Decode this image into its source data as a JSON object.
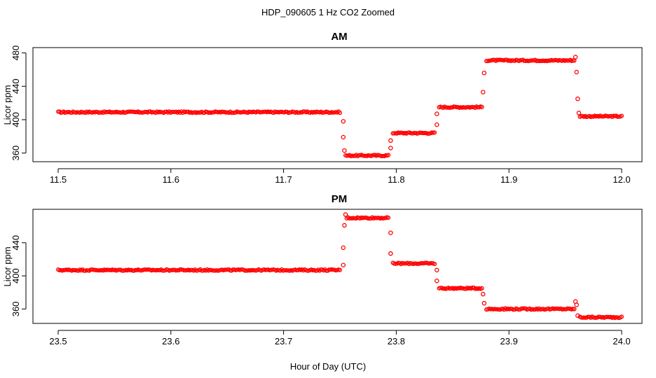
{
  "figure": {
    "title": "HDP_090605  1 Hz CO2 Zoomed",
    "xlabel": "Hour of Day (UTC)"
  },
  "colors": {
    "points": "#ff0000",
    "axis": "#000000",
    "background": "#ffffff"
  },
  "chart_data": [
    {
      "type": "scatter",
      "title": "AM",
      "xlabel": "Hour of Day (UTC)",
      "ylabel": "Licor ppm",
      "xlim": [
        11.5,
        12.0
      ],
      "ylim": [
        353,
        483
      ],
      "xticks": [
        11.5,
        11.6,
        11.7,
        11.8,
        11.9,
        12.0
      ],
      "xtick_labels": [
        "11.5",
        "11.6",
        "11.7",
        "11.8",
        "11.9",
        "12.0"
      ],
      "yticks": [
        360,
        400,
        440,
        480
      ],
      "ytick_labels": [
        "360",
        "400",
        "440",
        "480"
      ],
      "marker": "open-circle",
      "grid": false,
      "segments": [
        {
          "x_start": 11.5,
          "x_end": 11.75,
          "y": 409
        },
        {
          "x_start": 11.755,
          "x_end": 11.793,
          "y": 357
        },
        {
          "x_start": 11.797,
          "x_end": 11.834,
          "y": 384
        },
        {
          "x_start": 11.838,
          "x_end": 11.876,
          "y": 415
        },
        {
          "x_start": 11.88,
          "x_end": 11.958,
          "y": 471
        },
        {
          "x_start": 11.963,
          "x_end": 12.0,
          "y": 404
        }
      ],
      "transition_points": [
        {
          "x": 11.753,
          "y": 398
        },
        {
          "x": 11.753,
          "y": 379
        },
        {
          "x": 11.754,
          "y": 363
        },
        {
          "x": 11.795,
          "y": 366
        },
        {
          "x": 11.795,
          "y": 375
        },
        {
          "x": 11.836,
          "y": 394
        },
        {
          "x": 11.836,
          "y": 407
        },
        {
          "x": 11.877,
          "y": 433
        },
        {
          "x": 11.878,
          "y": 456
        },
        {
          "x": 11.959,
          "y": 475
        },
        {
          "x": 11.96,
          "y": 457
        },
        {
          "x": 11.961,
          "y": 425
        },
        {
          "x": 11.962,
          "y": 408
        }
      ]
    },
    {
      "type": "scatter",
      "title": "PM",
      "xlabel": "Hour of Day (UTC)",
      "ylabel": "Licor ppm",
      "xlim": [
        23.5,
        24.0
      ],
      "ylim": [
        346,
        477
      ],
      "xticks": [
        23.5,
        23.6,
        23.7,
        23.8,
        23.9,
        24.0
      ],
      "xtick_labels": [
        "23.5",
        "23.6",
        "23.7",
        "23.8",
        "23.9",
        "24.0"
      ],
      "yticks": [
        360,
        400,
        440
      ],
      "ytick_labels": [
        "360",
        "400",
        "440"
      ],
      "marker": "open-circle",
      "grid": false,
      "segments": [
        {
          "x_start": 23.5,
          "x_end": 23.75,
          "y": 407
        },
        {
          "x_start": 23.756,
          "x_end": 23.793,
          "y": 470
        },
        {
          "x_start": 23.797,
          "x_end": 23.834,
          "y": 415
        },
        {
          "x_start": 23.838,
          "x_end": 23.876,
          "y": 385
        },
        {
          "x_start": 23.88,
          "x_end": 23.958,
          "y": 360
        },
        {
          "x_start": 23.963,
          "x_end": 24.0,
          "y": 350
        }
      ],
      "transition_points": [
        {
          "x": 23.753,
          "y": 413
        },
        {
          "x": 23.753,
          "y": 434
        },
        {
          "x": 23.754,
          "y": 461
        },
        {
          "x": 23.755,
          "y": 474
        },
        {
          "x": 23.795,
          "y": 452
        },
        {
          "x": 23.795,
          "y": 427
        },
        {
          "x": 23.836,
          "y": 407
        },
        {
          "x": 23.836,
          "y": 394
        },
        {
          "x": 23.877,
          "y": 378
        },
        {
          "x": 23.878,
          "y": 367
        },
        {
          "x": 23.959,
          "y": 369
        },
        {
          "x": 23.96,
          "y": 365
        },
        {
          "x": 23.961,
          "y": 352
        }
      ]
    }
  ]
}
